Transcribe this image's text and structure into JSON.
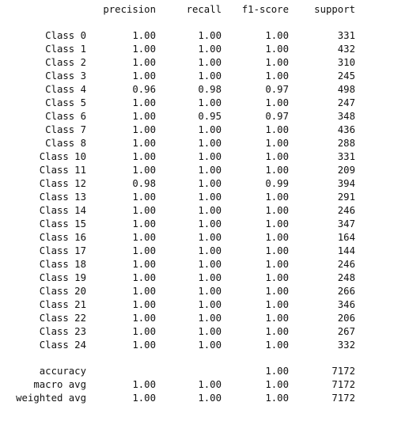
{
  "header": {
    "precision": "precision",
    "recall": "recall",
    "f1_score": "f1-score",
    "support": "support"
  },
  "classes": [
    {
      "label": "Class 0",
      "precision": "1.00",
      "recall": "1.00",
      "f1": "1.00",
      "support": "331"
    },
    {
      "label": "Class 1",
      "precision": "1.00",
      "recall": "1.00",
      "f1": "1.00",
      "support": "432"
    },
    {
      "label": "Class 2",
      "precision": "1.00",
      "recall": "1.00",
      "f1": "1.00",
      "support": "310"
    },
    {
      "label": "Class 3",
      "precision": "1.00",
      "recall": "1.00",
      "f1": "1.00",
      "support": "245"
    },
    {
      "label": "Class 4",
      "precision": "0.96",
      "recall": "0.98",
      "f1": "0.97",
      "support": "498"
    },
    {
      "label": "Class 5",
      "precision": "1.00",
      "recall": "1.00",
      "f1": "1.00",
      "support": "247"
    },
    {
      "label": "Class 6",
      "precision": "1.00",
      "recall": "0.95",
      "f1": "0.97",
      "support": "348"
    },
    {
      "label": "Class 7",
      "precision": "1.00",
      "recall": "1.00",
      "f1": "1.00",
      "support": "436"
    },
    {
      "label": "Class 8",
      "precision": "1.00",
      "recall": "1.00",
      "f1": "1.00",
      "support": "288"
    },
    {
      "label": "Class 10",
      "precision": "1.00",
      "recall": "1.00",
      "f1": "1.00",
      "support": "331"
    },
    {
      "label": "Class 11",
      "precision": "1.00",
      "recall": "1.00",
      "f1": "1.00",
      "support": "209"
    },
    {
      "label": "Class 12",
      "precision": "0.98",
      "recall": "1.00",
      "f1": "0.99",
      "support": "394"
    },
    {
      "label": "Class 13",
      "precision": "1.00",
      "recall": "1.00",
      "f1": "1.00",
      "support": "291"
    },
    {
      "label": "Class 14",
      "precision": "1.00",
      "recall": "1.00",
      "f1": "1.00",
      "support": "246"
    },
    {
      "label": "Class 15",
      "precision": "1.00",
      "recall": "1.00",
      "f1": "1.00",
      "support": "347"
    },
    {
      "label": "Class 16",
      "precision": "1.00",
      "recall": "1.00",
      "f1": "1.00",
      "support": "164"
    },
    {
      "label": "Class 17",
      "precision": "1.00",
      "recall": "1.00",
      "f1": "1.00",
      "support": "144"
    },
    {
      "label": "Class 18",
      "precision": "1.00",
      "recall": "1.00",
      "f1": "1.00",
      "support": "246"
    },
    {
      "label": "Class 19",
      "precision": "1.00",
      "recall": "1.00",
      "f1": "1.00",
      "support": "248"
    },
    {
      "label": "Class 20",
      "precision": "1.00",
      "recall": "1.00",
      "f1": "1.00",
      "support": "266"
    },
    {
      "label": "Class 21",
      "precision": "1.00",
      "recall": "1.00",
      "f1": "1.00",
      "support": "346"
    },
    {
      "label": "Class 22",
      "precision": "1.00",
      "recall": "1.00",
      "f1": "1.00",
      "support": "206"
    },
    {
      "label": "Class 23",
      "precision": "1.00",
      "recall": "1.00",
      "f1": "1.00",
      "support": "267"
    },
    {
      "label": "Class 24",
      "precision": "1.00",
      "recall": "1.00",
      "f1": "1.00",
      "support": "332"
    }
  ],
  "summary": {
    "accuracy": {
      "label": "accuracy",
      "f1": "1.00",
      "support": "7172"
    },
    "macro_avg": {
      "label": "macro avg",
      "precision": "1.00",
      "recall": "1.00",
      "f1": "1.00",
      "support": "7172"
    },
    "weighted_avg": {
      "label": "weighted avg",
      "precision": "1.00",
      "recall": "1.00",
      "f1": "1.00",
      "support": "7172"
    }
  }
}
